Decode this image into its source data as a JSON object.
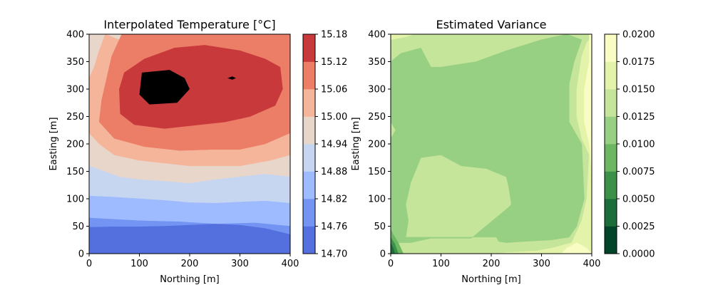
{
  "chart_data": [
    {
      "type": "contour",
      "title": "Interpolated Temperature [°C]",
      "xlabel": "Northing [m]",
      "ylabel": "Easting [m]",
      "xlim": [
        0,
        400
      ],
      "ylim": [
        0,
        400
      ],
      "xticks": [
        "0",
        "100",
        "200",
        "300",
        "400"
      ],
      "yticks": [
        "0",
        "50",
        "100",
        "150",
        "200",
        "250",
        "300",
        "350",
        "400"
      ],
      "colormap": "coolwarm",
      "levels": [
        14.7,
        14.76,
        14.82,
        14.88,
        14.94,
        15.0,
        15.06,
        15.12,
        15.18
      ],
      "colorbar_ticks": [
        "14.70",
        "14.76",
        "14.82",
        "14.88",
        "14.94",
        "15.00",
        "15.06",
        "15.12",
        "15.18"
      ],
      "colors": [
        "#5470DE",
        "#7394F3",
        "#9DBBFE",
        "#C7D6F0",
        "#E8D6CB",
        "#F5B59A",
        "#EC7E67",
        "#C8393C"
      ],
      "regions": [
        {
          "level": 1,
          "points": [
            [
              0,
              65
            ],
            [
              40,
              63
            ],
            [
              100,
              60
            ],
            [
              180,
              58
            ],
            [
              250,
              54
            ],
            [
              330,
              56
            ],
            [
              400,
              50
            ],
            [
              400,
              0
            ],
            [
              0,
              0
            ]
          ]
        },
        {
          "level": 2,
          "points": [
            [
              0,
              105
            ],
            [
              50,
              103
            ],
            [
              100,
              100
            ],
            [
              150,
              97
            ],
            [
              200,
              93
            ],
            [
              250,
              92
            ],
            [
              300,
              94
            ],
            [
              350,
              96
            ],
            [
              400,
              92
            ],
            [
              400,
              0
            ],
            [
              0,
              0
            ]
          ]
        },
        {
          "level": 3,
          "points": [
            [
              0,
              160
            ],
            [
              30,
              150
            ],
            [
              60,
              140
            ],
            [
              100,
              135
            ],
            [
              150,
              132
            ],
            [
              200,
              128
            ],
            [
              250,
              135
            ],
            [
              300,
              140
            ],
            [
              350,
              145
            ],
            [
              400,
              140
            ],
            [
              400,
              0
            ],
            [
              0,
              0
            ]
          ]
        },
        {
          "level": 4,
          "points": [
            [
              0,
              400
            ],
            [
              400,
              400
            ],
            [
              400,
              0
            ],
            [
              0,
              0
            ]
          ]
        },
        {
          "level": 5,
          "points": [
            [
              32,
              400
            ],
            [
              60,
              390
            ],
            [
              80,
              360
            ],
            [
              120,
              340
            ],
            [
              160,
              330
            ],
            [
              200,
              330
            ],
            [
              260,
              340
            ],
            [
              330,
              345
            ],
            [
              380,
              345
            ],
            [
              400,
              355
            ],
            [
              400,
              180
            ],
            [
              360,
              170
            ],
            [
              300,
              160
            ],
            [
              250,
              160
            ],
            [
              200,
              160
            ],
            [
              150,
              165
            ],
            [
              100,
              170
            ],
            [
              50,
              180
            ],
            [
              20,
              200
            ],
            [
              0,
              220
            ],
            [
              0,
              320
            ],
            [
              10,
              340
            ],
            [
              20,
              370
            ]
          ]
        },
        {
          "level": 6,
          "points": [
            [
              65,
              400
            ],
            [
              400,
              400
            ],
            [
              400,
              220
            ],
            [
              350,
              200
            ],
            [
              300,
              190
            ],
            [
              250,
              190
            ],
            [
              180,
              188
            ],
            [
              110,
              195
            ],
            [
              50,
              210
            ],
            [
              20,
              240
            ],
            [
              25,
              280
            ],
            [
              35,
              320
            ],
            [
              45,
              360
            ]
          ]
        },
        {
          "level": 7,
          "points": [
            [
              60,
              300
            ],
            [
              70,
              330
            ],
            [
              110,
              355
            ],
            [
              170,
              375
            ],
            [
              230,
              380
            ],
            [
              300,
              370
            ],
            [
              350,
              355
            ],
            [
              380,
              340
            ],
            [
              385,
              300
            ],
            [
              370,
              270
            ],
            [
              320,
              250
            ],
            [
              270,
              240
            ],
            [
              220,
              235
            ],
            [
              150,
              228
            ],
            [
              90,
              235
            ],
            [
              62,
              255
            ]
          ]
        },
        {
          "level": 8,
          "points": [
            [
              105,
              330
            ],
            [
              160,
              335
            ],
            [
              190,
              320
            ],
            [
              200,
              300
            ],
            [
              175,
              275
            ],
            [
              120,
              272
            ],
            [
              100,
              290
            ]
          ]
        },
        {
          "level": 8,
          "points": [
            [
              275,
              320
            ],
            [
              285,
              323
            ],
            [
              292,
              320
            ],
            [
              285,
              317
            ]
          ]
        }
      ],
      "color_bands_low_left": [
        {
          "level": 0,
          "points": [
            [
              0,
              48
            ],
            [
              0,
              0
            ],
            [
              400,
              0
            ],
            [
              400,
              35
            ],
            [
              350,
              46
            ],
            [
              300,
              52
            ],
            [
              250,
              54
            ],
            [
              200,
              52
            ],
            [
              150,
              50
            ],
            [
              100,
              49
            ],
            [
              50,
              49
            ]
          ]
        }
      ]
    },
    {
      "type": "contour",
      "title": "Estimated Variance",
      "xlabel": "Northing [m]",
      "ylabel": "Easting [m]",
      "xlim": [
        0,
        400
      ],
      "ylim": [
        0,
        400
      ],
      "xticks": [
        "0",
        "100",
        "200",
        "300",
        "400"
      ],
      "yticks": [
        "0",
        "50",
        "100",
        "150",
        "200",
        "250",
        "300",
        "350",
        "400"
      ],
      "colormap": "YlGn_r",
      "levels": [
        0.0,
        0.0025,
        0.005,
        0.0075,
        0.01,
        0.0125,
        0.015,
        0.0175,
        0.02
      ],
      "colorbar_ticks": [
        "0.0000",
        "0.0025",
        "0.0050",
        "0.0075",
        "0.0100",
        "0.0125",
        "0.0150",
        "0.0175",
        "0.0200"
      ],
      "colors": [
        "#004529",
        "#1B6E3A",
        "#3C9149",
        "#6DB662",
        "#98D083",
        "#C5E59B",
        "#E4F3AA",
        "#F9FCC3"
      ],
      "regions": [
        {
          "level": 5,
          "points": [
            [
              0,
              400
            ],
            [
              400,
              400
            ],
            [
              400,
              0
            ],
            [
              0,
              0
            ]
          ]
        },
        {
          "level": 4,
          "points": [
            [
              0,
              210
            ],
            [
              10,
              225
            ],
            [
              0,
              240
            ],
            [
              0,
              350
            ],
            [
              20,
              365
            ],
            [
              60,
              375
            ],
            [
              80,
              340
            ],
            [
              100,
              340
            ],
            [
              170,
              350
            ],
            [
              230,
              370
            ],
            [
              300,
              390
            ],
            [
              350,
              400
            ],
            [
              380,
              390
            ],
            [
              365,
              350
            ],
            [
              355,
              310
            ],
            [
              355,
              270
            ],
            [
              355,
              240
            ],
            [
              380,
              200
            ],
            [
              385,
              100
            ],
            [
              370,
              50
            ],
            [
              355,
              30
            ],
            [
              320,
              25
            ],
            [
              260,
              22
            ],
            [
              230,
              20
            ],
            [
              215,
              22
            ],
            [
              210,
              30
            ],
            [
              0,
              30
            ],
            [
              0,
              20
            ],
            [
              40,
              20
            ],
            [
              80,
              28
            ],
            [
              160,
              28
            ],
            [
              235,
              85
            ],
            [
              240,
              90
            ],
            [
              235,
              120
            ],
            [
              230,
              140
            ],
            [
              190,
              155
            ],
            [
              140,
              160
            ],
            [
              100,
              180
            ],
            [
              60,
              175
            ],
            [
              40,
              130
            ],
            [
              30,
              90
            ],
            [
              35,
              60
            ],
            [
              30,
              30
            ],
            [
              0,
              30
            ]
          ]
        },
        {
          "level": 6,
          "points": [
            [
              400,
              395
            ],
            [
              390,
              385
            ],
            [
              380,
              360
            ],
            [
              370,
              300
            ],
            [
              370,
              250
            ],
            [
              380,
              210
            ],
            [
              395,
              180
            ],
            [
              390,
              100
            ],
            [
              380,
              60
            ],
            [
              370,
              40
            ],
            [
              360,
              20
            ],
            [
              320,
              10
            ],
            [
              290,
              5
            ],
            [
              230,
              2
            ],
            [
              210,
              0
            ],
            [
              400,
              0
            ]
          ]
        },
        {
          "level": 6,
          "points": [
            [
              0,
              390
            ],
            [
              30,
              395
            ],
            [
              45,
              400
            ],
            [
              0,
              400
            ]
          ]
        },
        {
          "level": 7,
          "points": [
            [
              395,
              400
            ],
            [
              395,
              350
            ],
            [
              385,
              300
            ],
            [
              385,
              240
            ],
            [
              395,
              200
            ],
            [
              400,
              150
            ],
            [
              400,
              400
            ]
          ]
        },
        {
          "level": 7,
          "points": [
            [
              370,
              20
            ],
            [
              390,
              10
            ],
            [
              400,
              0
            ],
            [
              340,
              0
            ],
            [
              350,
              10
            ]
          ]
        },
        {
          "level": 3,
          "points": [
            [
              0,
              45
            ],
            [
              5,
              35
            ],
            [
              15,
              20
            ],
            [
              25,
              0
            ],
            [
              0,
              0
            ]
          ]
        },
        {
          "level": 2,
          "points": [
            [
              0,
              30
            ],
            [
              8,
              18
            ],
            [
              15,
              0
            ],
            [
              0,
              0
            ]
          ]
        },
        {
          "level": 1,
          "points": [
            [
              0,
              20
            ],
            [
              6,
              8
            ],
            [
              8,
              0
            ],
            [
              0,
              0
            ]
          ]
        }
      ]
    }
  ]
}
